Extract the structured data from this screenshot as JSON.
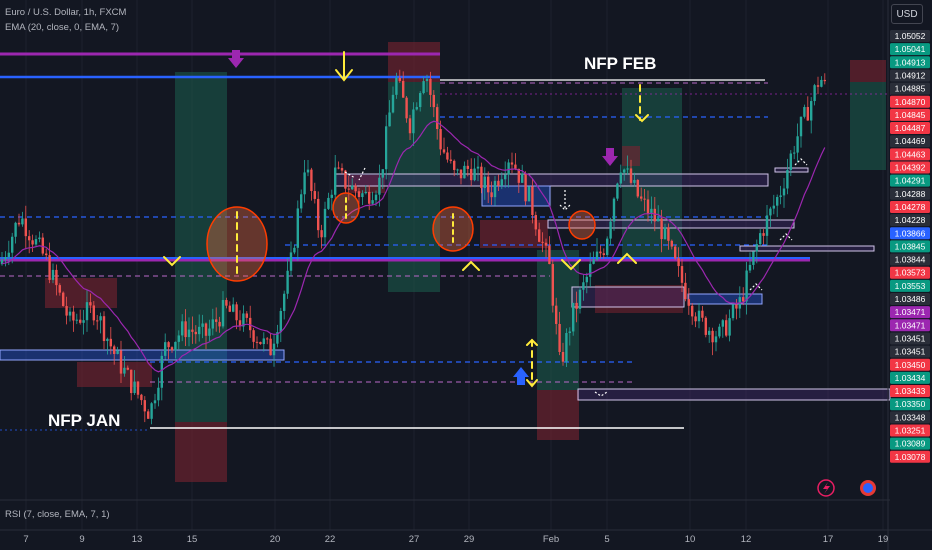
{
  "header": {
    "symbol_line": "Euro / U.S. Dollar, 1h, FXCM",
    "ema_line": "EMA (20, close, 0, EMA, 7)",
    "currency_button": "USD"
  },
  "rsi_panel": {
    "label": "RSI (7, close, EMA, 7, 1)"
  },
  "annotations": {
    "nfp_feb": "NFP FEB",
    "nfp_jan": "NFP JAN"
  },
  "colors": {
    "background": "#131722",
    "up": "#26a69a",
    "down": "#ef5350",
    "ema": "#9c27b0",
    "blue_line": "#2962ff",
    "purple_line": "#9c27b0",
    "yellow_marker": "#ffeb3b",
    "green_zone": "#1b5e4f",
    "red_zone": "#7a2330"
  },
  "chart_data": {
    "type": "candlestick",
    "symbol": "EURUSD",
    "timeframe": "1h",
    "ylim": [
      1.03,
      1.0515
    ],
    "x_ticks": [
      "7",
      "9",
      "13",
      "15",
      "20",
      "22",
      "27",
      "29",
      "Feb",
      "5",
      "10",
      "12",
      "17",
      "19"
    ],
    "price_labels": [
      {
        "value": "1.05052",
        "color": "#2a2e39"
      },
      {
        "value": "1.05041",
        "color": "#089981"
      },
      {
        "value": "1.04913",
        "color": "#089981"
      },
      {
        "value": "1.04912",
        "color": "#2a2e39"
      },
      {
        "value": "1.04885",
        "color": "#2a2e39"
      },
      {
        "value": "1.04870",
        "color": "#f23645"
      },
      {
        "value": "1.04845",
        "color": "#f23645"
      },
      {
        "value": "1.04487",
        "color": "#f23645"
      },
      {
        "value": "1.04469",
        "color": "#2a2e39"
      },
      {
        "value": "1.04463",
        "color": "#f23645"
      },
      {
        "value": "1.04392",
        "color": "#f23645"
      },
      {
        "value": "1.04291",
        "color": "#089981"
      },
      {
        "value": "1.04288",
        "color": "#2a2e39"
      },
      {
        "value": "1.04278",
        "color": "#f23645"
      },
      {
        "value": "1.04228",
        "color": "#2a2e39"
      },
      {
        "value": "1.03866",
        "color": "#2962ff"
      },
      {
        "value": "1.03845",
        "color": "#089981"
      },
      {
        "value": "1.03844",
        "color": "#2a2e39"
      },
      {
        "value": "1.03573",
        "color": "#f23645"
      },
      {
        "value": "1.03553",
        "color": "#089981"
      },
      {
        "value": "1.03486",
        "color": "#2a2e39"
      },
      {
        "value": "1.03471",
        "color": "#9c27b0"
      },
      {
        "value": "1.03471",
        "color": "#9c27b0"
      },
      {
        "value": "1.03451",
        "color": "#2a2e39"
      },
      {
        "value": "1.03451",
        "color": "#2a2e39"
      },
      {
        "value": "1.03450",
        "color": "#f23645"
      },
      {
        "value": "1.03434",
        "color": "#089981"
      },
      {
        "value": "1.03433",
        "color": "#f23645"
      },
      {
        "value": "1.03350",
        "color": "#089981"
      },
      {
        "value": "1.03348",
        "color": "#2a2e39"
      },
      {
        "value": "1.03251",
        "color": "#f23645"
      },
      {
        "value": "1.03089",
        "color": "#089981"
      },
      {
        "value": "1.03078",
        "color": "#f23645"
      }
    ],
    "price_path": [
      [
        0,
        1.0395
      ],
      [
        20,
        1.042
      ],
      [
        45,
        1.0398
      ],
      [
        70,
        1.0365
      ],
      [
        95,
        1.0372
      ],
      [
        115,
        1.0348
      ],
      [
        135,
        1.033
      ],
      [
        150,
        1.0318
      ],
      [
        165,
        1.0352
      ],
      [
        185,
        1.0362
      ],
      [
        205,
        1.0358
      ],
      [
        225,
        1.0372
      ],
      [
        250,
        1.0362
      ],
      [
        270,
        1.035
      ],
      [
        290,
        1.0392
      ],
      [
        305,
        1.0448
      ],
      [
        320,
        1.041
      ],
      [
        335,
        1.0442
      ],
      [
        350,
        1.0435
      ],
      [
        365,
        1.043
      ],
      [
        380,
        1.0438
      ],
      [
        395,
        1.0492
      ],
      [
        410,
        1.0468
      ],
      [
        425,
        1.0497
      ],
      [
        440,
        1.0458
      ],
      [
        455,
        1.044
      ],
      [
        470,
        1.0445
      ],
      [
        490,
        1.0432
      ],
      [
        510,
        1.0452
      ],
      [
        530,
        1.0428
      ],
      [
        550,
        1.0392
      ],
      [
        560,
        1.0342
      ],
      [
        572,
        1.0368
      ],
      [
        590,
        1.0392
      ],
      [
        605,
        1.0405
      ],
      [
        620,
        1.0448
      ],
      [
        640,
        1.0428
      ],
      [
        660,
        1.0415
      ],
      [
        680,
        1.0388
      ],
      [
        700,
        1.0365
      ],
      [
        720,
        1.0358
      ],
      [
        740,
        1.0375
      ],
      [
        760,
        1.041
      ],
      [
        780,
        1.0432
      ],
      [
        795,
        1.0458
      ],
      [
        810,
        1.0478
      ],
      [
        820,
        1.0492
      ],
      [
        826,
        1.0485
      ]
    ]
  }
}
